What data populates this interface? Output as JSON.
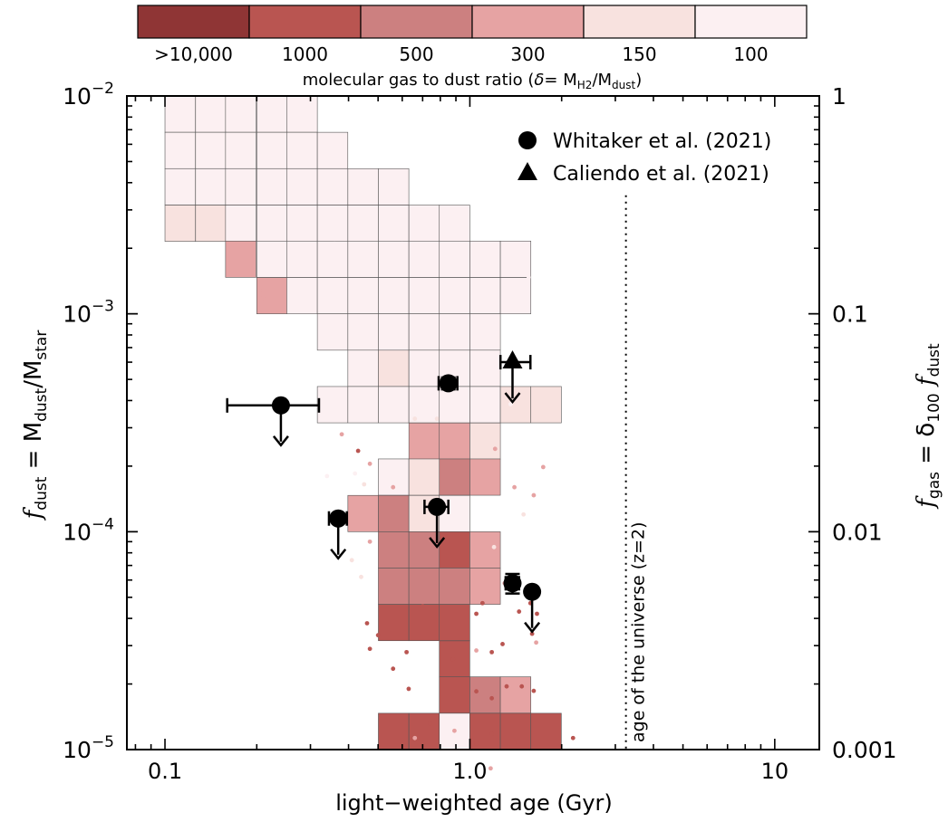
{
  "chart_data": {
    "type": "scatter",
    "xlabel": "light−weighted age (Gyr)",
    "ylabel_left": {
      "main": "f",
      "sub": "dust",
      "eq": " = M",
      "sub2": "dust",
      "slash": "/M",
      "sub3": "star"
    },
    "ylabel_right": {
      "main": "f",
      "sub": "gas",
      "eq": " = δ",
      "sub2": "100",
      "f2": " f",
      "sub3": "dust"
    },
    "x_scale": "log",
    "y_scale": "log",
    "xlim": [
      0.075,
      14
    ],
    "ylim": [
      1e-05,
      0.01
    ],
    "x_ticks": [
      {
        "value": 0.1,
        "label": "0.1"
      },
      {
        "value": 1.0,
        "label": "1.0"
      },
      {
        "value": 10,
        "label": "10"
      }
    ],
    "y_ticks_left": [
      {
        "value": 1e-05,
        "base": "10",
        "exp": "−5"
      },
      {
        "value": 0.0001,
        "base": "10",
        "exp": "−4"
      },
      {
        "value": 0.001,
        "base": "10",
        "exp": "−3"
      },
      {
        "value": 0.01,
        "base": "10",
        "exp": "−2"
      }
    ],
    "y_ticks_right": [
      {
        "value": 1e-05,
        "label": "0.001"
      },
      {
        "value": 0.0001,
        "label": "0.01"
      },
      {
        "value": 0.001,
        "label": "0.1"
      },
      {
        "value": 0.01,
        "label": "1"
      }
    ],
    "colorbar": {
      "label_prefix": "molecular gas to dust ratio (",
      "label_delta": "δ",
      "label_eq": "= M",
      "label_sub1": "H2",
      "label_slash": "/M",
      "label_sub2": "dust",
      "label_suffix": ")",
      "bins": [
        {
          "label": ">10,000",
          "color": "#8f3535"
        },
        {
          "label": "1000",
          "color": "#b95551"
        },
        {
          "label": "500",
          "color": "#cc8080"
        },
        {
          "label": "300",
          "color": "#e6a3a3"
        },
        {
          "label": "150",
          "color": "#f8e2df"
        },
        {
          "label": "100",
          "color": "#fcf0f2"
        }
      ]
    },
    "heatmap_bin_size_dex": {
      "x": 0.1,
      "y": 0.1667
    },
    "heatmap_cells": [
      {
        "x0": 0.1,
        "y0": 0.00681,
        "c": 5
      },
      {
        "x0": 0.126,
        "y0": 0.00681,
        "c": 5
      },
      {
        "x0": 0.158,
        "y0": 0.00681,
        "c": 5
      },
      {
        "x0": 0.2,
        "y0": 0.00681,
        "c": 5
      },
      {
        "x0": 0.251,
        "y0": 0.00681,
        "c": 5
      },
      {
        "x0": 0.1,
        "y0": 0.00464,
        "c": 5
      },
      {
        "x0": 0.126,
        "y0": 0.00464,
        "c": 5
      },
      {
        "x0": 0.158,
        "y0": 0.00464,
        "c": 5
      },
      {
        "x0": 0.2,
        "y0": 0.00464,
        "c": 5
      },
      {
        "x0": 0.251,
        "y0": 0.00464,
        "c": 5
      },
      {
        "x0": 0.316,
        "y0": 0.00464,
        "c": 5
      },
      {
        "x0": 0.1,
        "y0": 0.00316,
        "c": 5
      },
      {
        "x0": 0.126,
        "y0": 0.00316,
        "c": 5
      },
      {
        "x0": 0.158,
        "y0": 0.00316,
        "c": 5
      },
      {
        "x0": 0.2,
        "y0": 0.00316,
        "c": 5
      },
      {
        "x0": 0.251,
        "y0": 0.00316,
        "c": 5
      },
      {
        "x0": 0.316,
        "y0": 0.00316,
        "c": 5
      },
      {
        "x0": 0.398,
        "y0": 0.00316,
        "c": 5
      },
      {
        "x0": 0.501,
        "y0": 0.00316,
        "c": 5
      },
      {
        "x0": 0.1,
        "y0": 0.00215,
        "c": 4
      },
      {
        "x0": 0.126,
        "y0": 0.00215,
        "c": 4
      },
      {
        "x0": 0.158,
        "y0": 0.00215,
        "c": 5
      },
      {
        "x0": 0.2,
        "y0": 0.00215,
        "c": 5
      },
      {
        "x0": 0.251,
        "y0": 0.00215,
        "c": 5
      },
      {
        "x0": 0.316,
        "y0": 0.00215,
        "c": 5
      },
      {
        "x0": 0.398,
        "y0": 0.00215,
        "c": 5
      },
      {
        "x0": 0.501,
        "y0": 0.00215,
        "c": 5
      },
      {
        "x0": 0.631,
        "y0": 0.00215,
        "c": 5
      },
      {
        "x0": 0.794,
        "y0": 0.00215,
        "c": 5
      },
      {
        "x0": 0.158,
        "y0": 0.00147,
        "c": 3
      },
      {
        "x0": 0.2,
        "y0": 0.00147,
        "c": 5
      },
      {
        "x0": 0.251,
        "y0": 0.00147,
        "c": 5
      },
      {
        "x0": 0.316,
        "y0": 0.00147,
        "c": 5
      },
      {
        "x0": 0.398,
        "y0": 0.00147,
        "c": 5
      },
      {
        "x0": 0.501,
        "y0": 0.00147,
        "c": 5
      },
      {
        "x0": 0.631,
        "y0": 0.00147,
        "c": 5
      },
      {
        "x0": 0.794,
        "y0": 0.00147,
        "c": 5
      },
      {
        "x0": 1.0,
        "y0": 0.00147,
        "c": 5
      },
      {
        "x0": 1.259,
        "y0": 0.00147,
        "c": 5
      },
      {
        "x0": 0.2,
        "y0": 0.001,
        "c": 3
      },
      {
        "x0": 0.251,
        "y0": 0.001,
        "c": 5
      },
      {
        "x0": 0.316,
        "y0": 0.001,
        "c": 5
      },
      {
        "x0": 0.398,
        "y0": 0.001,
        "c": 5
      },
      {
        "x0": 0.501,
        "y0": 0.001,
        "c": 5
      },
      {
        "x0": 0.631,
        "y0": 0.001,
        "c": 5
      },
      {
        "x0": 0.794,
        "y0": 0.001,
        "c": 5
      },
      {
        "x0": 1.0,
        "y0": 0.001,
        "c": 5
      },
      {
        "x0": 1.259,
        "y0": 0.001,
        "c": 5
      },
      {
        "x0": 0.316,
        "y0": 0.000681,
        "c": 5
      },
      {
        "x0": 0.398,
        "y0": 0.000681,
        "c": 5
      },
      {
        "x0": 0.501,
        "y0": 0.000681,
        "c": 5
      },
      {
        "x0": 0.631,
        "y0": 0.000681,
        "c": 5
      },
      {
        "x0": 0.794,
        "y0": 0.000681,
        "c": 5
      },
      {
        "x0": 1.0,
        "y0": 0.000681,
        "c": 5
      },
      {
        "x0": 0.398,
        "y0": 0.000464,
        "c": 5
      },
      {
        "x0": 0.501,
        "y0": 0.000464,
        "c": 4
      },
      {
        "x0": 0.631,
        "y0": 0.000464,
        "c": 5
      },
      {
        "x0": 0.794,
        "y0": 0.000464,
        "c": 5
      },
      {
        "x0": 1.0,
        "y0": 0.000464,
        "c": 5
      },
      {
        "x0": 0.316,
        "y0": 0.000316,
        "c": 5
      },
      {
        "x0": 0.398,
        "y0": 0.000316,
        "c": 5
      },
      {
        "x0": 0.501,
        "y0": 0.000316,
        "c": 5
      },
      {
        "x0": 0.631,
        "y0": 0.000316,
        "c": 5
      },
      {
        "x0": 0.794,
        "y0": 0.000316,
        "c": 5
      },
      {
        "x0": 1.0,
        "y0": 0.000316,
        "c": 5
      },
      {
        "x0": 1.259,
        "y0": 0.000316,
        "c": 4
      },
      {
        "x0": 1.585,
        "y0": 0.000316,
        "c": 4
      },
      {
        "x0": 0.631,
        "y0": 0.000215,
        "c": 3
      },
      {
        "x0": 0.794,
        "y0": 0.000215,
        "c": 3
      },
      {
        "x0": 1.0,
        "y0": 0.000215,
        "c": 4
      },
      {
        "x0": 0.501,
        "y0": 0.000147,
        "c": 5
      },
      {
        "x0": 0.631,
        "y0": 0.000147,
        "c": 4
      },
      {
        "x0": 0.794,
        "y0": 0.000147,
        "c": 2
      },
      {
        "x0": 1.0,
        "y0": 0.000147,
        "c": 3
      },
      {
        "x0": 0.398,
        "y0": 0.0001,
        "c": 3
      },
      {
        "x0": 0.501,
        "y0": 0.0001,
        "c": 2
      },
      {
        "x0": 0.631,
        "y0": 0.0001,
        "c": 4
      },
      {
        "x0": 0.794,
        "y0": 0.0001,
        "c": 5
      },
      {
        "x0": 0.501,
        "y0": 6.81e-05,
        "c": 2
      },
      {
        "x0": 0.631,
        "y0": 6.81e-05,
        "c": 2
      },
      {
        "x0": 0.794,
        "y0": 6.81e-05,
        "c": 1
      },
      {
        "x0": 1.0,
        "y0": 6.81e-05,
        "c": 3
      },
      {
        "x0": 0.501,
        "y0": 4.64e-05,
        "c": 2
      },
      {
        "x0": 0.631,
        "y0": 4.64e-05,
        "c": 2
      },
      {
        "x0": 0.794,
        "y0": 4.64e-05,
        "c": 2
      },
      {
        "x0": 1.0,
        "y0": 4.64e-05,
        "c": 3
      },
      {
        "x0": 0.501,
        "y0": 3.16e-05,
        "c": 1
      },
      {
        "x0": 0.631,
        "y0": 3.16e-05,
        "c": 1
      },
      {
        "x0": 0.794,
        "y0": 3.16e-05,
        "c": 1
      },
      {
        "x0": 0.794,
        "y0": 2.15e-05,
        "c": 1
      },
      {
        "x0": 0.794,
        "y0": 1.47e-05,
        "c": 1
      },
      {
        "x0": 1.0,
        "y0": 1.47e-05,
        "c": 2
      },
      {
        "x0": 1.259,
        "y0": 1.47e-05,
        "c": 3
      },
      {
        "x0": 0.501,
        "y0": 1e-05,
        "c": 1
      },
      {
        "x0": 0.631,
        "y0": 1e-05,
        "c": 1
      },
      {
        "x0": 0.794,
        "y0": 1e-05,
        "c": 5
      },
      {
        "x0": 1.0,
        "y0": 1e-05,
        "c": 1
      },
      {
        "x0": 1.259,
        "y0": 1e-05,
        "c": 1
      },
      {
        "x0": 1.585,
        "y0": 1e-05,
        "c": 1
      }
    ],
    "scatter_points": [
      {
        "x": 0.205,
        "y": 0.00128,
        "c": 3
      },
      {
        "x": 0.21,
        "y": 0.00118,
        "c": 3
      },
      {
        "x": 0.43,
        "y": 0.000235,
        "c": 1
      },
      {
        "x": 0.38,
        "y": 0.00028,
        "c": 3
      },
      {
        "x": 0.45,
        "y": 0.000165,
        "c": 4
      },
      {
        "x": 0.47,
        "y": 9e-05,
        "c": 3
      },
      {
        "x": 0.41,
        "y": 7.4e-05,
        "c": 4
      },
      {
        "x": 0.44,
        "y": 6.2e-05,
        "c": 4
      },
      {
        "x": 0.34,
        "y": 0.00018,
        "c": 5
      },
      {
        "x": 1.21,
        "y": 0.00024,
        "c": 3
      },
      {
        "x": 1.4,
        "y": 0.00016,
        "c": 3
      },
      {
        "x": 1.62,
        "y": 0.000147,
        "c": 3
      },
      {
        "x": 1.74,
        "y": 0.000198,
        "c": 3
      },
      {
        "x": 1.5,
        "y": 0.00012,
        "c": 4
      },
      {
        "x": 1.3,
        "y": 5.8e-05,
        "c": 3
      },
      {
        "x": 1.2,
        "y": 8.5e-05,
        "c": 4
      },
      {
        "x": 1.05,
        "y": 4.2e-05,
        "c": 1
      },
      {
        "x": 1.1,
        "y": 4.7e-05,
        "c": 1
      },
      {
        "x": 1.18,
        "y": 2.8e-05,
        "c": 1
      },
      {
        "x": 1.28,
        "y": 3.05e-05,
        "c": 1
      },
      {
        "x": 1.45,
        "y": 4.3e-05,
        "c": 1
      },
      {
        "x": 1.58,
        "y": 4.7e-05,
        "c": 1
      },
      {
        "x": 1.66,
        "y": 4.2e-05,
        "c": 1
      },
      {
        "x": 1.6,
        "y": 3.4e-05,
        "c": 1
      },
      {
        "x": 1.65,
        "y": 3.1e-05,
        "c": 3
      },
      {
        "x": 0.5,
        "y": 3.35e-05,
        "c": 1
      },
      {
        "x": 0.46,
        "y": 3.8e-05,
        "c": 1
      },
      {
        "x": 0.47,
        "y": 2.9e-05,
        "c": 1
      },
      {
        "x": 0.56,
        "y": 2.35e-05,
        "c": 1
      },
      {
        "x": 0.63,
        "y": 1.9e-05,
        "c": 1
      },
      {
        "x": 0.88,
        "y": 2.6e-05,
        "c": 1
      },
      {
        "x": 1.05,
        "y": 1.85e-05,
        "c": 1
      },
      {
        "x": 1.18,
        "y": 1.72e-05,
        "c": 1
      },
      {
        "x": 1.32,
        "y": 1.95e-05,
        "c": 1
      },
      {
        "x": 1.48,
        "y": 1.95e-05,
        "c": 1
      },
      {
        "x": 1.62,
        "y": 1.86e-05,
        "c": 1
      },
      {
        "x": 1.18,
        "y": 1.18e-05,
        "c": 1
      },
      {
        "x": 1.4,
        "y": 1.08e-05,
        "c": 1
      },
      {
        "x": 1.05,
        "y": 1.07e-05,
        "c": 1
      },
      {
        "x": 2.18,
        "y": 1.13e-05,
        "c": 1
      },
      {
        "x": 0.74,
        "y": 1.32e-05,
        "c": 1
      },
      {
        "x": 0.66,
        "y": 1.13e-05,
        "c": 3
      },
      {
        "x": 0.89,
        "y": 1.22e-05,
        "c": 3
      },
      {
        "x": 1.05,
        "y": 2.85e-05,
        "c": 3
      },
      {
        "x": 1.17,
        "y": 8.2e-06,
        "c": 3
      },
      {
        "x": 1.36,
        "y": 0.000385,
        "c": 5
      },
      {
        "x": 1.45,
        "y": 0.00058,
        "c": 4
      },
      {
        "x": 1.56,
        "y": 0.00147,
        "c": 5
      },
      {
        "x": 1.34,
        "y": 0.00175,
        "c": 5
      },
      {
        "x": 0.36,
        "y": 0.0021,
        "c": 5
      },
      {
        "x": 0.6,
        "y": 0.0021,
        "c": 5
      },
      {
        "x": 0.66,
        "y": 0.00033,
        "c": 4
      },
      {
        "x": 0.78,
        "y": 0.00033,
        "c": 4
      },
      {
        "x": 0.47,
        "y": 0.000205,
        "c": 3
      },
      {
        "x": 0.56,
        "y": 0.00016,
        "c": 3
      },
      {
        "x": 0.42,
        "y": 0.000185,
        "c": 5
      },
      {
        "x": 0.7,
        "y": 4.55e-05,
        "c": 1
      },
      {
        "x": 0.62,
        "y": 2.8e-05,
        "c": 1
      }
    ],
    "series": [
      {
        "name": "Whitaker et al. (2021)",
        "marker": "circle",
        "points": [
          {
            "x": 0.24,
            "y": 0.00038,
            "xerr": [
              0.08,
              0.08
            ],
            "upper_limit": true
          },
          {
            "x": 0.37,
            "y": 0.000115,
            "xerr": [
              0.025,
              0.025
            ],
            "upper_limit": true
          },
          {
            "x": 0.78,
            "y": 0.00013,
            "xerr": [
              0.07,
              0.07
            ],
            "upper_limit": true
          },
          {
            "x": 0.85,
            "y": 0.00048,
            "xerr": [
              0.06,
              0.06
            ],
            "yerr": [
              3e-05,
              3e-05
            ],
            "upper_limit": false
          },
          {
            "x": 1.38,
            "y": 5.8e-05,
            "xerr": [
              0.07,
              0.07
            ],
            "yerr": [
              6e-06,
              6e-06
            ],
            "upper_limit": false
          },
          {
            "x": 1.6,
            "y": 5.3e-05,
            "upper_limit": true
          }
        ]
      },
      {
        "name": "Caliendo et al. (2021)",
        "marker": "triangle",
        "points": [
          {
            "x": 1.38,
            "y": 0.0006,
            "xerr": [
              0.12,
              0.2
            ],
            "upper_limit": true
          }
        ]
      }
    ],
    "reference_line": {
      "x": 3.25,
      "label": "age of the universe (z=2)",
      "style": "dotted"
    }
  }
}
